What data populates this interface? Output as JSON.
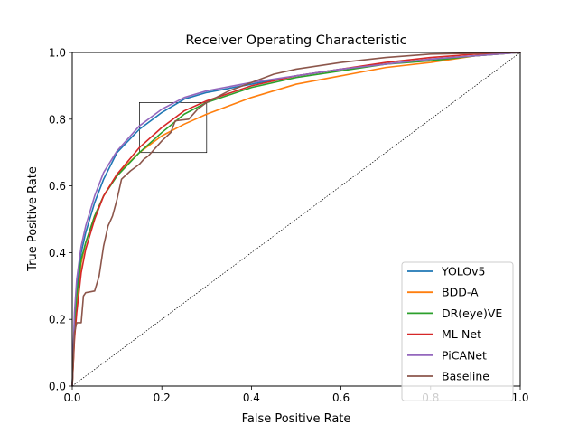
{
  "chart_data": {
    "type": "line",
    "title": "Receiver Operating Characteristic",
    "xlabel": "False Positive Rate",
    "ylabel": "True Positive Rate",
    "xlim": [
      0,
      1
    ],
    "ylim": [
      0,
      1
    ],
    "xticks": [
      0.0,
      0.2,
      0.4,
      0.6,
      0.8,
      1.0
    ],
    "yticks": [
      0.0,
      0.2,
      0.4,
      0.6,
      0.8,
      1.0
    ],
    "xtick_labels": [
      "0.0",
      "0.2",
      "0.4",
      "0.6",
      "0.8",
      "1.0"
    ],
    "ytick_labels": [
      "0.0",
      "0.2",
      "0.4",
      "0.6",
      "0.8",
      "1.0"
    ],
    "grid": false,
    "legend_position": "lower-right",
    "reference_line": {
      "style": "dotted",
      "color": "#000000",
      "points": [
        [
          0,
          0
        ],
        [
          1,
          1
        ]
      ]
    },
    "zoom_box": {
      "x": [
        0.15,
        0.3
      ],
      "y": [
        0.7,
        0.85
      ]
    },
    "series": [
      {
        "name": "YOLOv5",
        "color": "#1f77b4",
        "points": [
          [
            0,
            0
          ],
          [
            0.005,
            0.2
          ],
          [
            0.01,
            0.3
          ],
          [
            0.02,
            0.4
          ],
          [
            0.03,
            0.46
          ],
          [
            0.05,
            0.55
          ],
          [
            0.07,
            0.62
          ],
          [
            0.1,
            0.7
          ],
          [
            0.15,
            0.77
          ],
          [
            0.2,
            0.82
          ],
          [
            0.25,
            0.86
          ],
          [
            0.3,
            0.88
          ],
          [
            0.4,
            0.905
          ],
          [
            0.5,
            0.93
          ],
          [
            0.6,
            0.95
          ],
          [
            0.7,
            0.965
          ],
          [
            0.8,
            0.98
          ],
          [
            0.9,
            0.99
          ],
          [
            1,
            1
          ]
        ]
      },
      {
        "name": "BDD-A",
        "color": "#ff7f0e",
        "points": [
          [
            0,
            0
          ],
          [
            0.005,
            0.15
          ],
          [
            0.01,
            0.25
          ],
          [
            0.02,
            0.37
          ],
          [
            0.03,
            0.43
          ],
          [
            0.05,
            0.51
          ],
          [
            0.07,
            0.57
          ],
          [
            0.1,
            0.635
          ],
          [
            0.15,
            0.7
          ],
          [
            0.2,
            0.75
          ],
          [
            0.25,
            0.785
          ],
          [
            0.3,
            0.815
          ],
          [
            0.4,
            0.865
          ],
          [
            0.5,
            0.905
          ],
          [
            0.6,
            0.93
          ],
          [
            0.7,
            0.955
          ],
          [
            0.8,
            0.97
          ],
          [
            0.9,
            0.99
          ],
          [
            1,
            1
          ]
        ]
      },
      {
        "name": "DR(eye)VE",
        "color": "#2ca02c",
        "points": [
          [
            0,
            0
          ],
          [
            0.005,
            0.18
          ],
          [
            0.01,
            0.27
          ],
          [
            0.02,
            0.38
          ],
          [
            0.03,
            0.43
          ],
          [
            0.05,
            0.51
          ],
          [
            0.07,
            0.57
          ],
          [
            0.1,
            0.63
          ],
          [
            0.15,
            0.7
          ],
          [
            0.2,
            0.76
          ],
          [
            0.25,
            0.815
          ],
          [
            0.3,
            0.85
          ],
          [
            0.4,
            0.895
          ],
          [
            0.5,
            0.925
          ],
          [
            0.6,
            0.945
          ],
          [
            0.7,
            0.965
          ],
          [
            0.8,
            0.975
          ],
          [
            0.9,
            0.99
          ],
          [
            1,
            1
          ]
        ]
      },
      {
        "name": "ML-Net",
        "color": "#d62728",
        "points": [
          [
            0,
            0
          ],
          [
            0.005,
            0.14
          ],
          [
            0.01,
            0.22
          ],
          [
            0.02,
            0.34
          ],
          [
            0.03,
            0.41
          ],
          [
            0.05,
            0.5
          ],
          [
            0.07,
            0.57
          ],
          [
            0.1,
            0.635
          ],
          [
            0.15,
            0.715
          ],
          [
            0.2,
            0.775
          ],
          [
            0.25,
            0.825
          ],
          [
            0.3,
            0.855
          ],
          [
            0.4,
            0.9
          ],
          [
            0.5,
            0.93
          ],
          [
            0.6,
            0.95
          ],
          [
            0.7,
            0.97
          ],
          [
            0.8,
            0.985
          ],
          [
            0.9,
            0.995
          ],
          [
            1,
            1
          ]
        ]
      },
      {
        "name": "PiCANet",
        "color": "#9467bd",
        "points": [
          [
            0,
            0
          ],
          [
            0.005,
            0.22
          ],
          [
            0.01,
            0.32
          ],
          [
            0.02,
            0.42
          ],
          [
            0.03,
            0.48
          ],
          [
            0.05,
            0.57
          ],
          [
            0.07,
            0.64
          ],
          [
            0.1,
            0.705
          ],
          [
            0.15,
            0.78
          ],
          [
            0.2,
            0.83
          ],
          [
            0.25,
            0.865
          ],
          [
            0.3,
            0.885
          ],
          [
            0.4,
            0.91
          ],
          [
            0.5,
            0.93
          ],
          [
            0.6,
            0.95
          ],
          [
            0.7,
            0.965
          ],
          [
            0.8,
            0.98
          ],
          [
            0.9,
            0.99
          ],
          [
            1,
            1
          ]
        ]
      },
      {
        "name": "Baseline",
        "color": "#8c564b",
        "points": [
          [
            0,
            0
          ],
          [
            0.005,
            0.16
          ],
          [
            0.01,
            0.19
          ],
          [
            0.02,
            0.19
          ],
          [
            0.025,
            0.27
          ],
          [
            0.03,
            0.28
          ],
          [
            0.05,
            0.285
          ],
          [
            0.06,
            0.33
          ],
          [
            0.07,
            0.42
          ],
          [
            0.08,
            0.48
          ],
          [
            0.09,
            0.51
          ],
          [
            0.1,
            0.56
          ],
          [
            0.11,
            0.62
          ],
          [
            0.13,
            0.645
          ],
          [
            0.15,
            0.665
          ],
          [
            0.16,
            0.68
          ],
          [
            0.17,
            0.69
          ],
          [
            0.2,
            0.735
          ],
          [
            0.22,
            0.76
          ],
          [
            0.23,
            0.795
          ],
          [
            0.26,
            0.8
          ],
          [
            0.28,
            0.83
          ],
          [
            0.3,
            0.85
          ],
          [
            0.35,
            0.885
          ],
          [
            0.4,
            0.91
          ],
          [
            0.45,
            0.935
          ],
          [
            0.5,
            0.95
          ],
          [
            0.6,
            0.97
          ],
          [
            0.7,
            0.985
          ],
          [
            0.8,
            0.995
          ],
          [
            1,
            1
          ]
        ]
      }
    ]
  }
}
